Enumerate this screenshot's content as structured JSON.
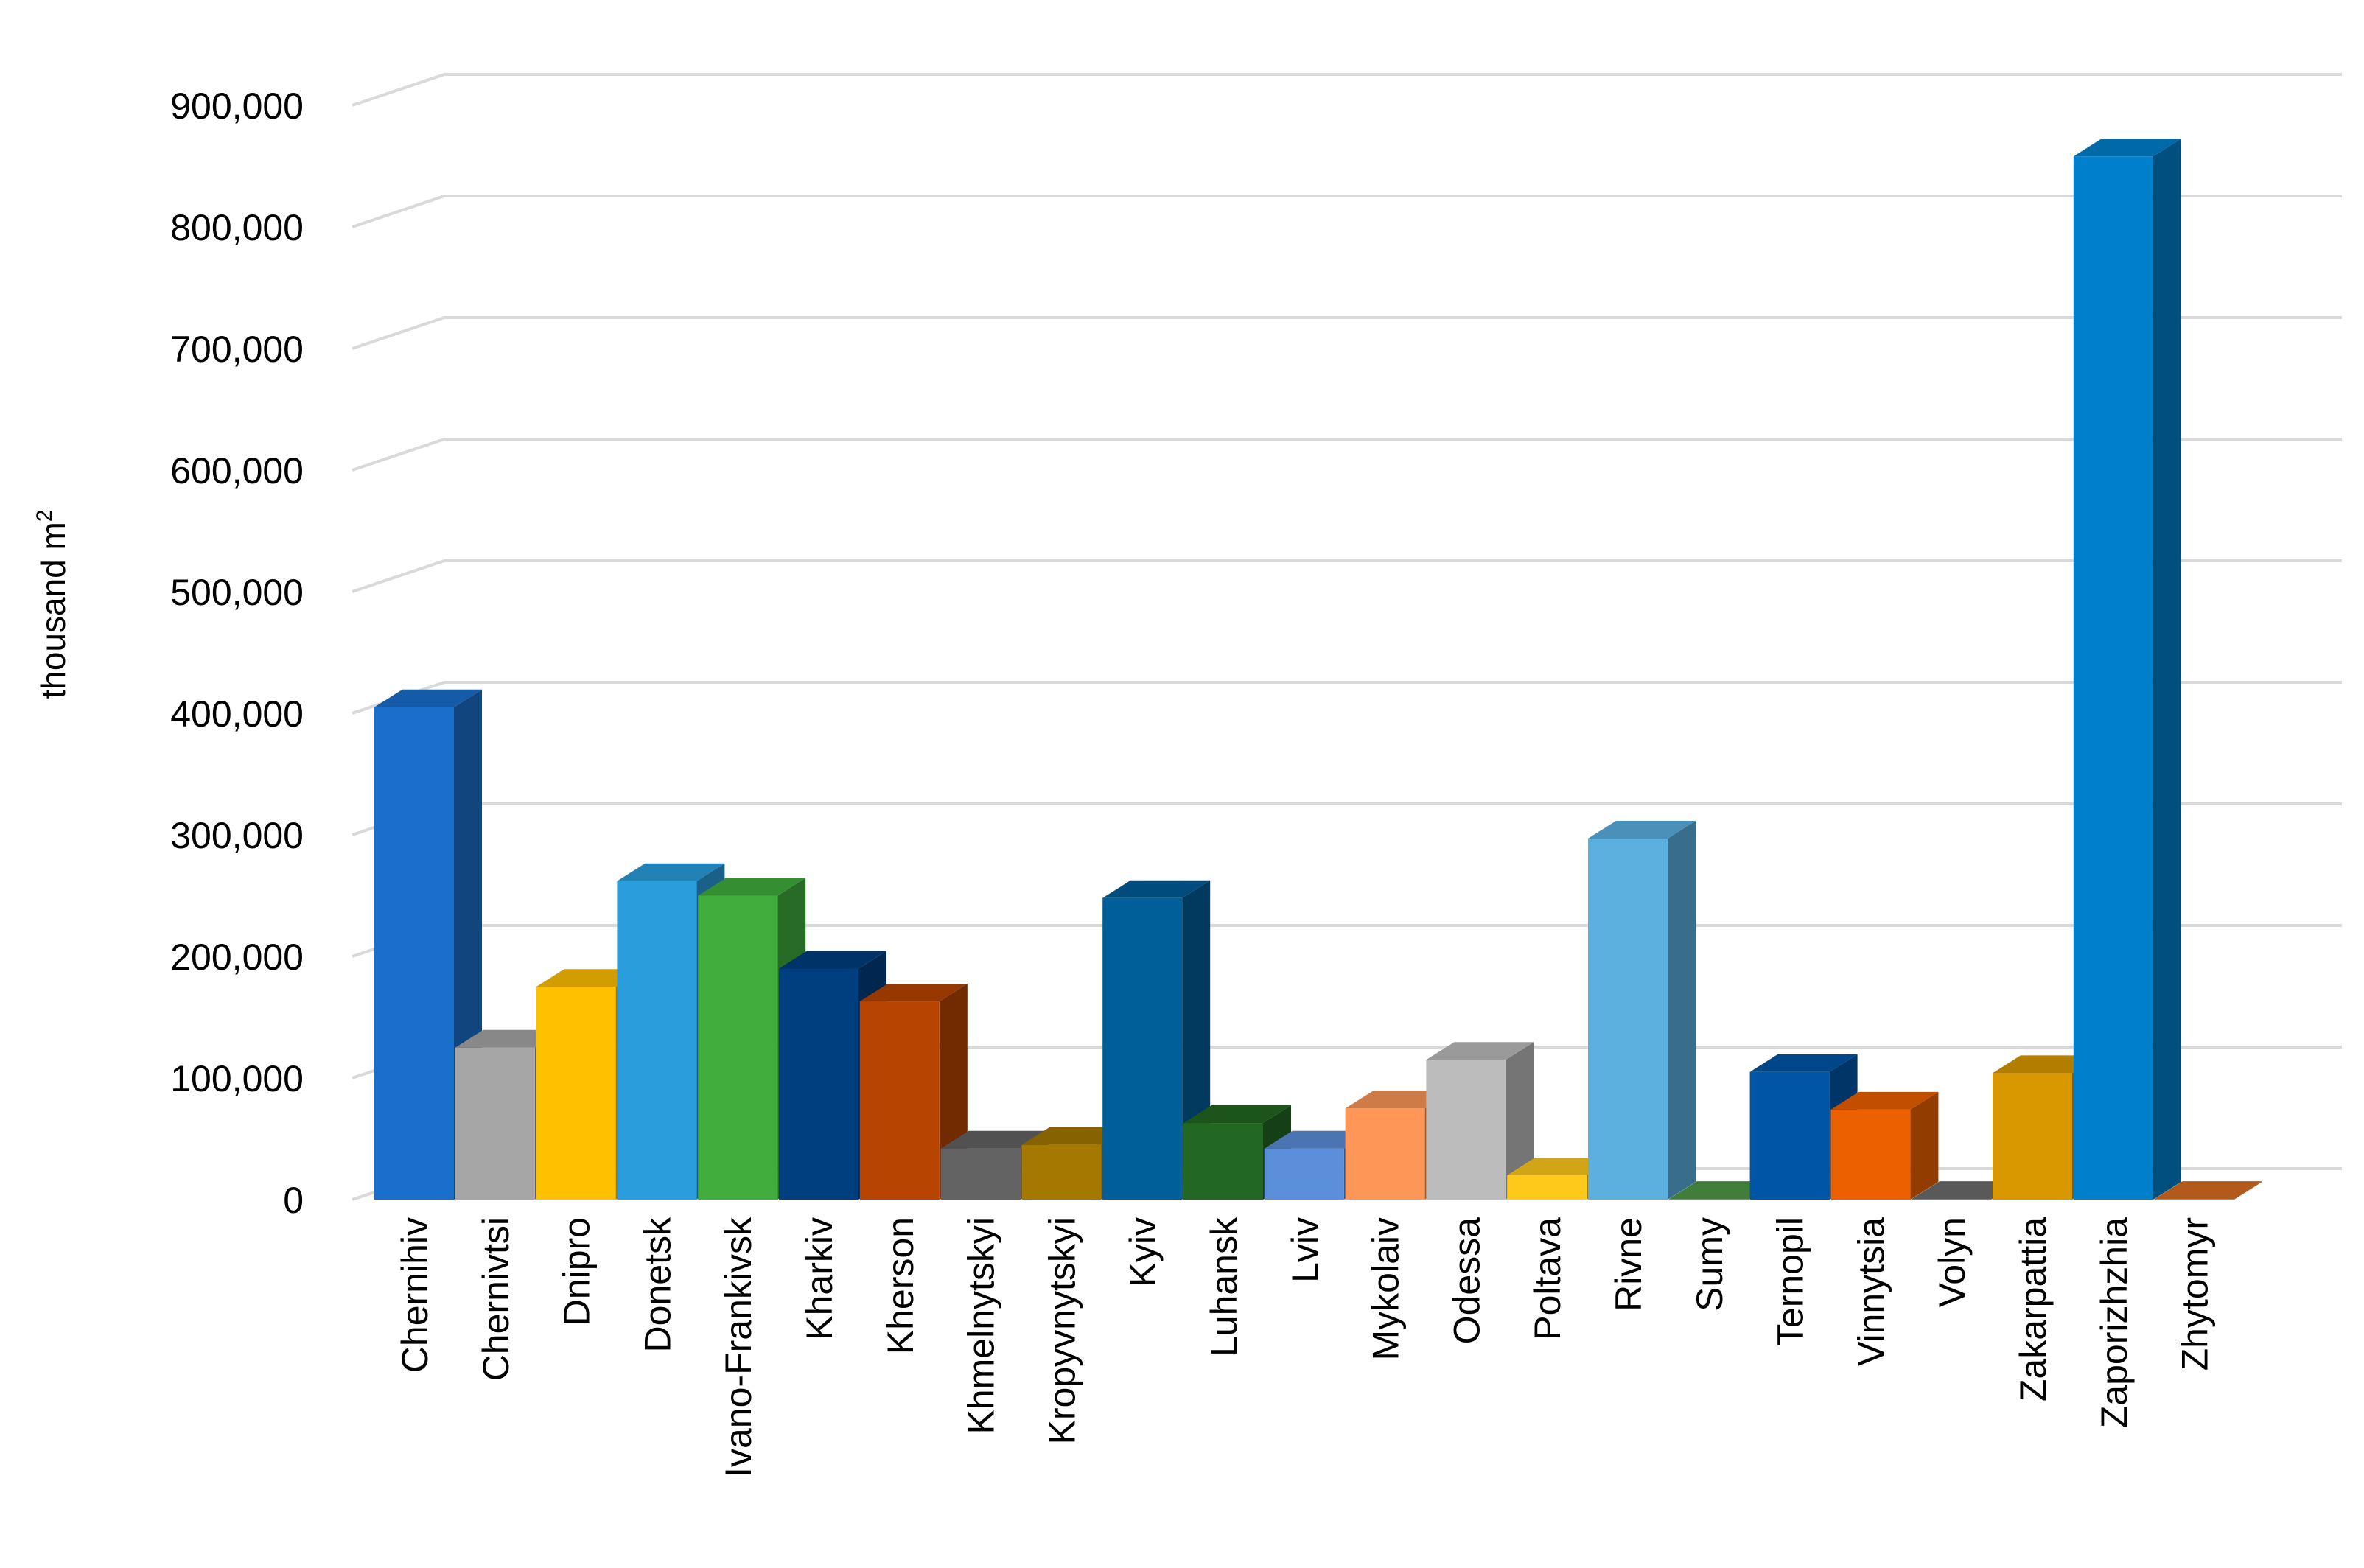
{
  "chart_data": {
    "type": "bar",
    "style": "3d-column",
    "ylabel": "thousand m",
    "ylabel_superscript": "2",
    "ylim": [
      0,
      900000
    ],
    "yticks": [
      0,
      100000,
      200000,
      300000,
      400000,
      500000,
      600000,
      700000,
      800000,
      900000
    ],
    "ytick_labels": [
      "0",
      "100,000",
      "200,000",
      "300,000",
      "400,000",
      "500,000",
      "600,000",
      "700,000",
      "800,000",
      "900,000"
    ],
    "grid": true,
    "legend": "none",
    "categories": [
      "Chernihiv",
      "Chernivtsi",
      "Dnipro",
      "Donetsk",
      "Ivano-Frankivsk",
      "Kharkiv",
      "Kherson",
      "Khmelnytskyi",
      "Kropyvnytskyi",
      "Kyiv",
      "Luhansk",
      "Lviv",
      "Mykolaiv",
      "Odessa",
      "Poltava",
      "Rivne",
      "Sumy",
      "Ternopil",
      "Vinnytsia",
      "Volyn",
      "Zakarpattia",
      "Zaporizhzhia",
      "Zhytomyr"
    ],
    "values": [
      405000,
      125000,
      175000,
      262000,
      250000,
      190000,
      163000,
      42000,
      45000,
      248000,
      63000,
      42000,
      75000,
      115000,
      20000,
      297000,
      500,
      105000,
      74000,
      500,
      104000,
      858000,
      500
    ],
    "colors": [
      "#1a6fcc",
      "#a6a6a6",
      "#ffc000",
      "#2a9ddd",
      "#41ad3d",
      "#003f7f",
      "#b84401",
      "#636363",
      "#a57800",
      "#005e99",
      "#226722",
      "#5b8fd9",
      "#fd9656",
      "#bcbcbc",
      "#ffc91b",
      "#5bb0e0",
      "#4e9a45",
      "#0055a6",
      "#ed6000",
      "#6d6d6d",
      "#da9800",
      "#0080cc",
      "#d96c22"
    ]
  }
}
